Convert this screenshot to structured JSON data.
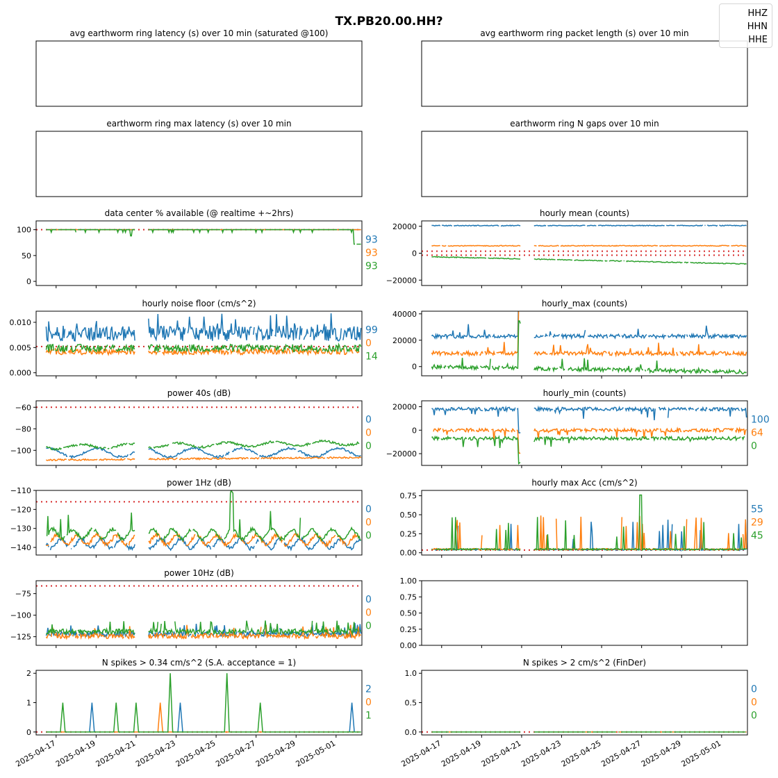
{
  "figure": {
    "title": "TX.PB20.00.HH?",
    "legend": [
      {
        "label": "HHZ",
        "color": "#1f77b4"
      },
      {
        "label": "HHN",
        "color": "#ff7f0e"
      },
      {
        "label": "HHE",
        "color": "#2ca02c"
      }
    ],
    "date_ticks": [
      "2025-04-17",
      "2025-04-19",
      "2025-04-21",
      "2025-04-23",
      "2025-04-25",
      "2025-04-27",
      "2025-04-29",
      "2025-05-01"
    ],
    "x_range": [
      "2025-04-16T00:00",
      "2025-05-02T07:00"
    ],
    "threshold_color": "#d62728"
  },
  "chart_data": [
    {
      "id": "p1",
      "type": "line",
      "title": "avg earthworm ring latency (s)   over 10 min (saturated @100)",
      "series": [],
      "empty": true
    },
    {
      "id": "p2",
      "type": "line",
      "title": "avg earthworm ring packet length (s)   over 10 min",
      "series": [],
      "empty": true
    },
    {
      "id": "p3",
      "type": "line",
      "title": "earthworm ring max latency (s)   over 10 min",
      "series": [],
      "empty": true
    },
    {
      "id": "p4",
      "type": "line",
      "title": "earthworm ring N gaps   over 10 min",
      "series": [],
      "empty": true
    },
    {
      "id": "p5",
      "type": "line",
      "title": "data center % available (@ realtime +~2hrs)",
      "ylim": [
        -8,
        117
      ],
      "yticks": [
        "0",
        "50",
        "100"
      ],
      "thresholds": [
        100
      ],
      "series_summary": [
        {
          "name": "HHZ",
          "typical": 100
        },
        {
          "name": "HHN",
          "typical": 100
        },
        {
          "name": "HHE",
          "typical": 100,
          "min": 71
        }
      ],
      "latest": [
        "93",
        "93",
        "93"
      ]
    },
    {
      "id": "p6",
      "type": "line",
      "title": "hourly mean (counts)",
      "ylim": [
        -24000,
        24000
      ],
      "yticks": [
        "−20000",
        "0",
        "20000"
      ],
      "thresholds": [
        1500,
        -1500
      ],
      "series_summary": [
        {
          "name": "HHZ",
          "typical": 20500
        },
        {
          "name": "HHN",
          "typical": 5500
        },
        {
          "name": "HHE",
          "typical_start": -2500,
          "typical_end": -8000
        }
      ],
      "latest": [
        "",
        "",
        ""
      ]
    },
    {
      "id": "p7",
      "type": "line",
      "title": "hourly noise floor (cm/s^2)",
      "ylim": [
        -0.0006,
        0.0122
      ],
      "yticks": [
        "0.000",
        "0.005",
        "0.010"
      ],
      "thresholds": [
        0.0052
      ],
      "series_summary": [
        {
          "name": "HHZ",
          "typical": 0.0078,
          "max": 0.011
        },
        {
          "name": "HHN",
          "typical": 0.0042
        },
        {
          "name": "HHE",
          "typical": 0.0048
        }
      ],
      "latest": [
        "99",
        "0",
        "14"
      ]
    },
    {
      "id": "p8",
      "type": "line",
      "title": "hourly_max (counts)",
      "ylim": [
        -7000,
        42000
      ],
      "yticks": [
        "0",
        "20000",
        "40000"
      ],
      "thresholds": [],
      "series_summary": [
        {
          "name": "HHZ",
          "typical": 23000
        },
        {
          "name": "HHN",
          "typical": 10000
        },
        {
          "name": "HHE",
          "typical": 0
        }
      ],
      "latest": [
        "",
        "",
        ""
      ]
    },
    {
      "id": "p9",
      "type": "line",
      "title": "power 40s (dB)",
      "ylim": [
        -114,
        -54
      ],
      "yticks": [
        "−100",
        "−80",
        "−60"
      ],
      "thresholds": [
        -60
      ],
      "series_summary": [
        {
          "name": "HHZ",
          "typical": -102
        },
        {
          "name": "HHN",
          "typical": -109
        },
        {
          "name": "HHE",
          "typical": -97
        }
      ],
      "latest": [
        "0",
        "0",
        "0"
      ]
    },
    {
      "id": "p10",
      "type": "line",
      "title": "hourly_min (counts)",
      "ylim": [
        -30000,
        25000
      ],
      "yticks": [
        "−20000",
        "0",
        "20000"
      ],
      "thresholds": [],
      "series_summary": [
        {
          "name": "HHZ",
          "typical": 18000
        },
        {
          "name": "HHN",
          "typical": 0
        },
        {
          "name": "HHE",
          "typical": -7000
        }
      ],
      "latest": [
        "100",
        "64",
        "0"
      ]
    },
    {
      "id": "p11",
      "type": "line",
      "title": "power 1Hz (dB)",
      "ylim": [
        -144,
        -110
      ],
      "yticks": [
        "−140",
        "−130",
        "−120",
        "−110"
      ],
      "thresholds": [
        -116
      ],
      "series_summary": [
        {
          "name": "HHZ",
          "typical": -138
        },
        {
          "name": "HHN",
          "typical": -136
        },
        {
          "name": "HHE",
          "typical": -133
        }
      ],
      "latest": [
        "0",
        "0",
        "0"
      ]
    },
    {
      "id": "p12",
      "type": "line",
      "title": "hourly max Acc (cm/s^2)",
      "ylim": [
        -0.03,
        0.82
      ],
      "yticks": [
        "0.00",
        "0.25",
        "0.50",
        "0.75"
      ],
      "thresholds": [
        0.035
      ],
      "series_summary": [
        {
          "name": "HHZ",
          "typical": 0.04
        },
        {
          "name": "HHN",
          "typical": 0.03
        },
        {
          "name": "HHE",
          "typical": 0.04,
          "max": 0.76
        }
      ],
      "latest": [
        "55",
        "29",
        "45"
      ]
    },
    {
      "id": "p13",
      "type": "line",
      "title": "power 10Hz (dB)",
      "ylim": [
        -135,
        -60
      ],
      "yticks": [
        "−125",
        "−100",
        "−75"
      ],
      "thresholds": [
        -66
      ],
      "series_summary": [
        {
          "name": "HHZ",
          "typical": -122
        },
        {
          "name": "HHN",
          "typical": -124
        },
        {
          "name": "HHE",
          "typical": -119
        }
      ],
      "latest": [
        "0",
        "0",
        "0"
      ]
    },
    {
      "id": "p14",
      "type": "line",
      "title": "",
      "ylim": [
        0,
        1
      ],
      "yticks": [
        "0.00",
        "0.25",
        "0.50",
        "0.75",
        "1.00"
      ],
      "series": [],
      "empty": true
    },
    {
      "id": "p15",
      "type": "line",
      "title": "N spikes > 0.34 cm/s^2 (S.A. acceptance = 1)",
      "ylim": [
        -0.1,
        2.1
      ],
      "yticks": [
        "0",
        "1",
        "2"
      ],
      "thresholds": [
        0
      ],
      "spikes": [
        {
          "x": "2025-04-17T08:00",
          "series": "HHE",
          "value": 1
        },
        {
          "x": "2025-04-18T19:00",
          "series": "HHZ",
          "value": 1
        },
        {
          "x": "2025-04-20T00:00",
          "series": "HHE",
          "value": 1
        },
        {
          "x": "2025-04-21T00:00",
          "series": "HHE",
          "value": 1
        },
        {
          "x": "2025-04-22T05:00",
          "series": "HHN",
          "value": 1
        },
        {
          "x": "2025-04-22T17:00",
          "series": "HHE",
          "value": 2
        },
        {
          "x": "2025-04-23T05:00",
          "series": "HHZ",
          "value": 1
        },
        {
          "x": "2025-04-25T13:00",
          "series": "HHE",
          "value": 2
        },
        {
          "x": "2025-04-27T05:00",
          "series": "HHE",
          "value": 1
        },
        {
          "x": "2025-05-01T19:00",
          "series": "HHZ",
          "value": 1
        }
      ],
      "latest": [
        "2",
        "0",
        "1"
      ]
    },
    {
      "id": "p16",
      "type": "line",
      "title": "N spikes > 2 cm/s^2 (FinDer)",
      "ylim": [
        -0.05,
        1.05
      ],
      "yticks": [
        "0.0",
        "0.5",
        "1.0"
      ],
      "thresholds": [
        0
      ],
      "series_summary": [
        {
          "name": "HHZ",
          "typical": 0
        },
        {
          "name": "HHN",
          "typical": 0
        },
        {
          "name": "HHE",
          "typical": 0
        }
      ],
      "latest": [
        "0",
        "0",
        "0"
      ]
    }
  ]
}
